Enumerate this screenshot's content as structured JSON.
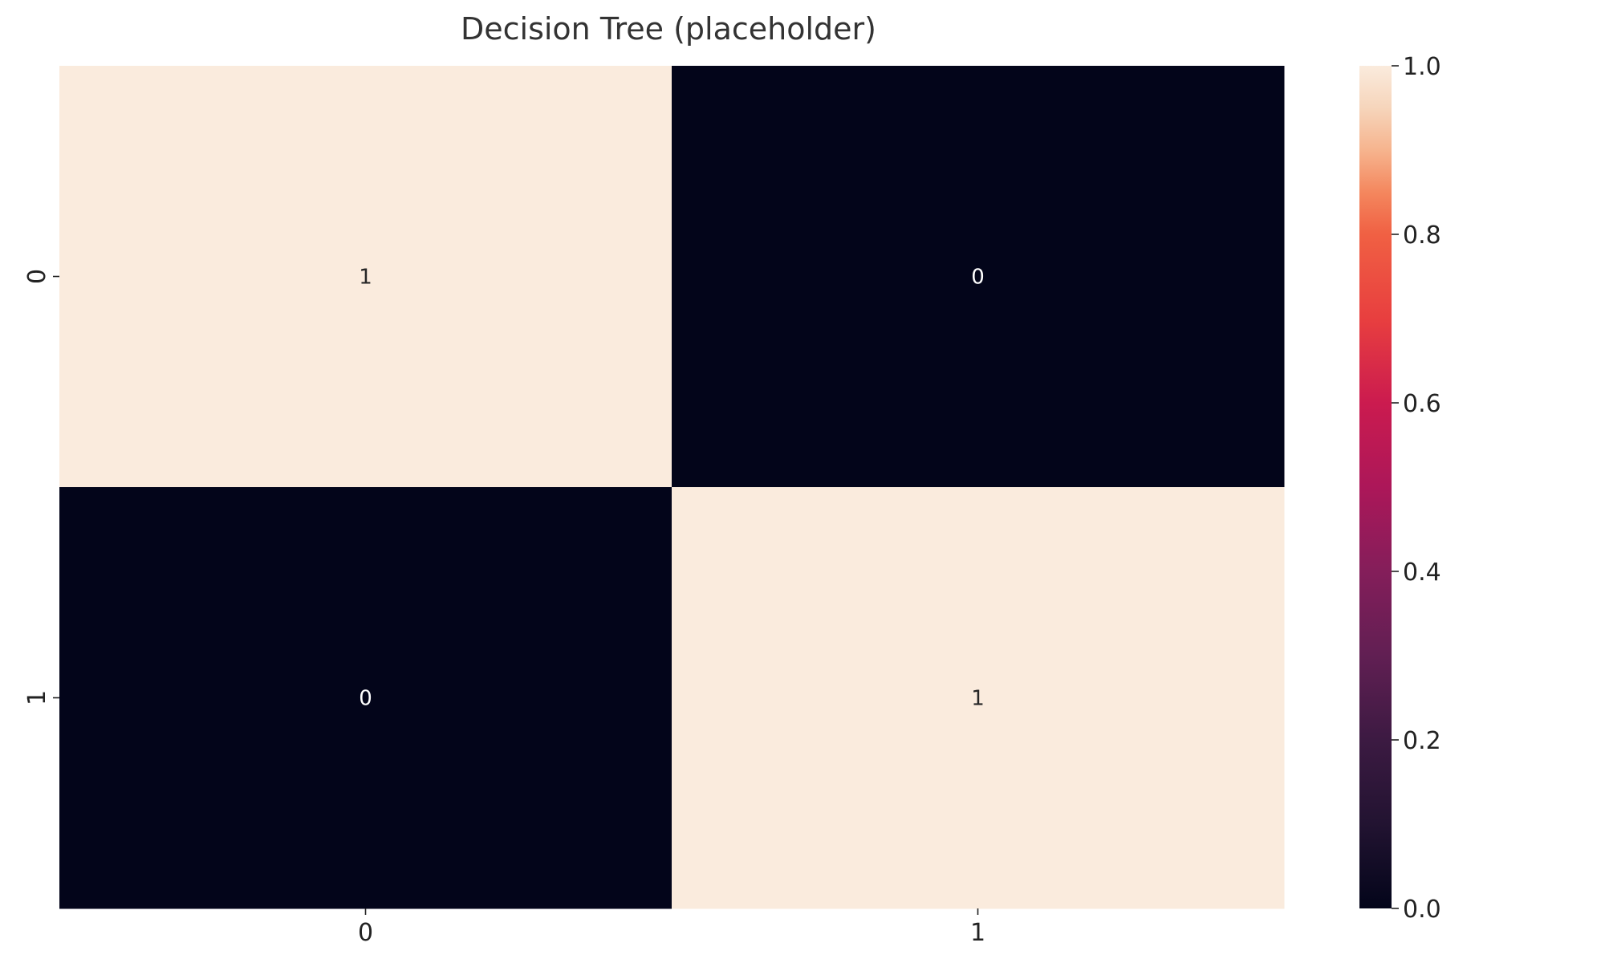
{
  "chart_data": {
    "type": "heatmap",
    "title": "Decision Tree (placeholder)",
    "row_labels": [
      "0",
      "1"
    ],
    "col_labels": [
      "0",
      "1"
    ],
    "values": [
      [
        1,
        0
      ],
      [
        0,
        1
      ]
    ],
    "annotations": [
      [
        "1",
        "0"
      ],
      [
        "0",
        "1"
      ]
    ],
    "colorbar": {
      "min": 0.0,
      "max": 1.0,
      "ticks": [
        "0.0",
        "0.2",
        "0.4",
        "0.6",
        "0.8",
        "1.0"
      ],
      "tick_values": [
        0.0,
        0.2,
        0.4,
        0.6,
        0.8,
        1.0
      ]
    },
    "colormap": "rocket",
    "colors": {
      "low": "#03051a",
      "high": "#faebdd"
    },
    "grid": false
  }
}
